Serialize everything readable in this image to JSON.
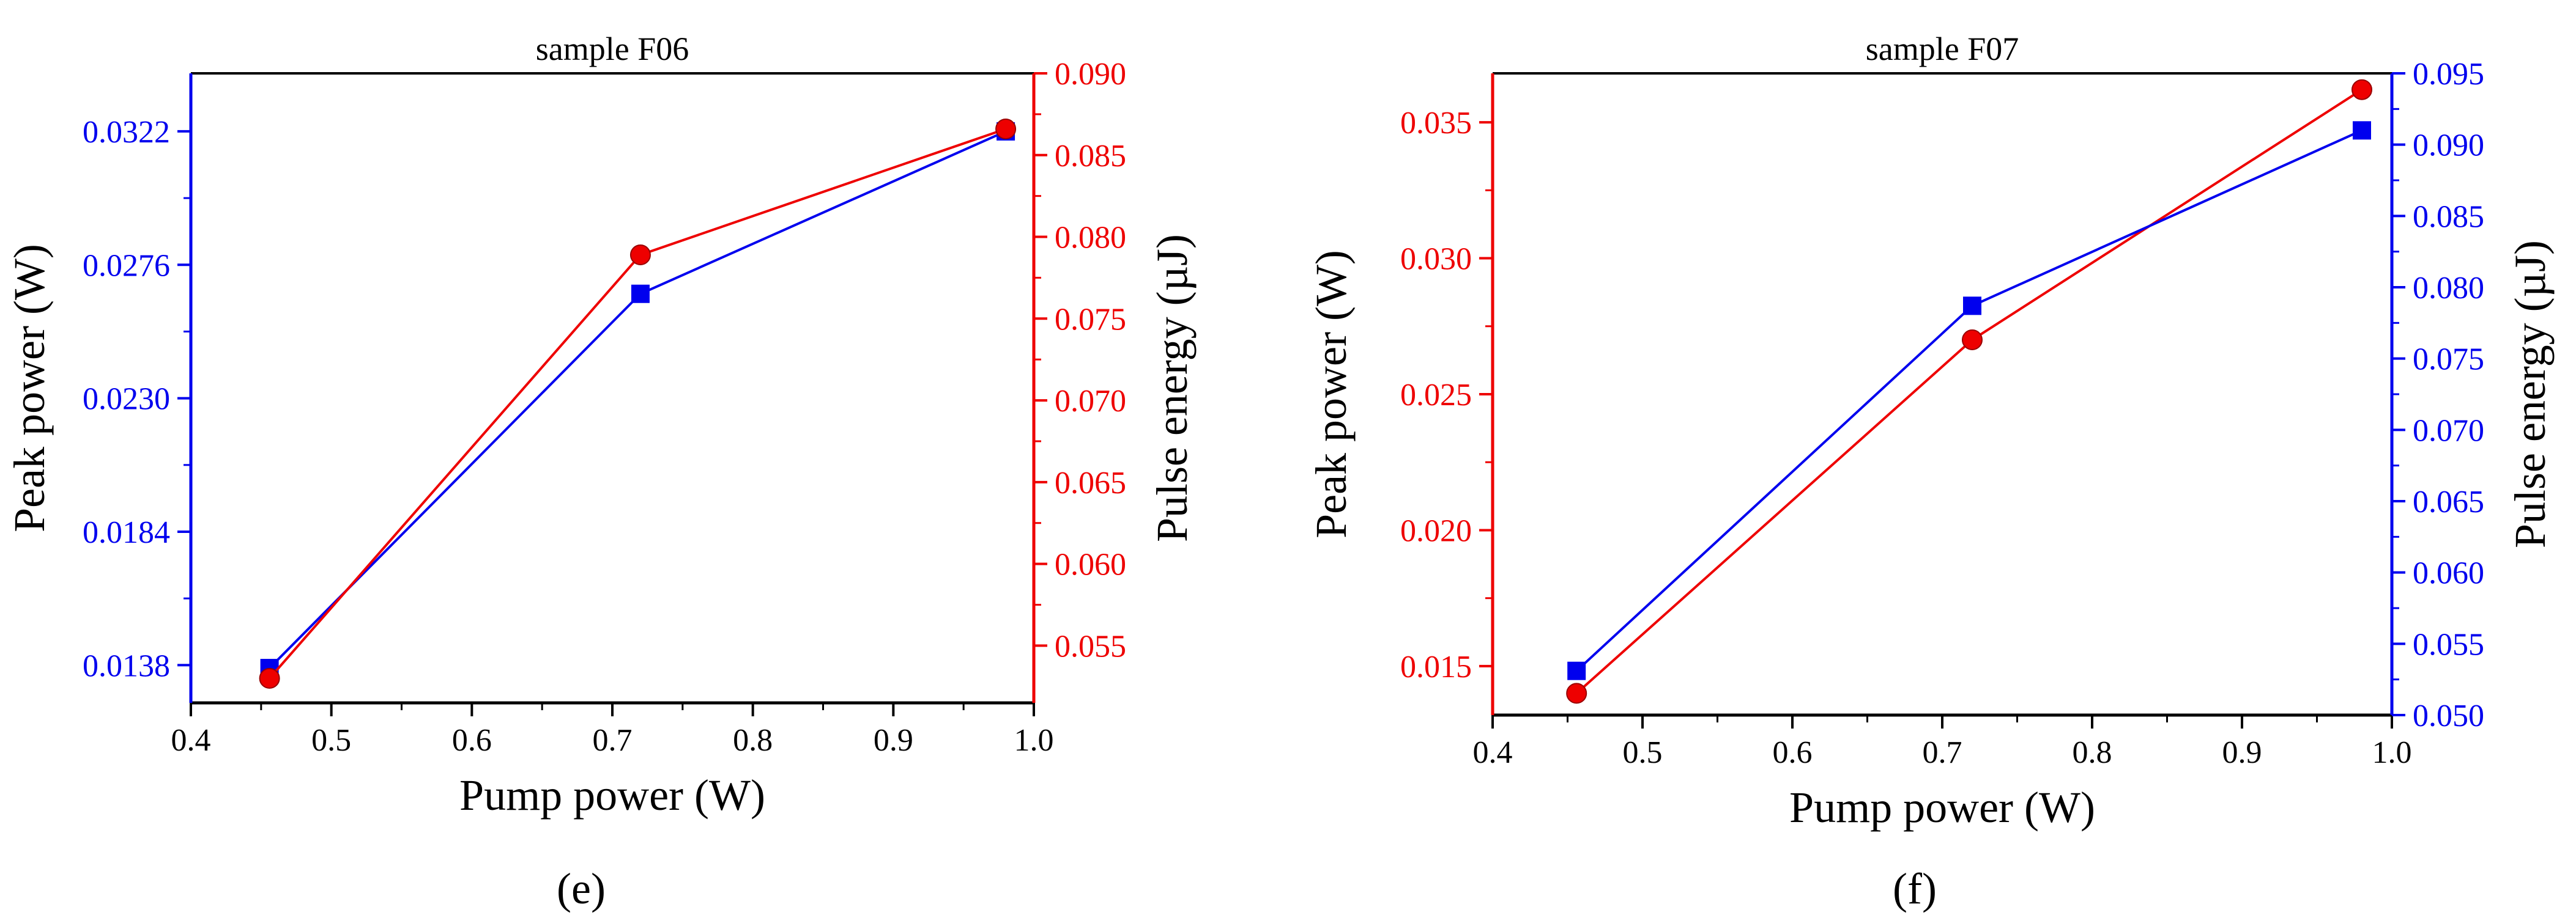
{
  "captions": {
    "panel_e": "(e)",
    "panel_f": "(f)"
  },
  "chart_data": [
    {
      "id": "panel-e",
      "type": "line",
      "title": "sample F06",
      "xlabel": "Pump power (W)",
      "ylabel_left": "Peak power (W)",
      "ylabel_right": "Pulse energy (µJ)",
      "xlim": [
        0.4,
        1.0
      ],
      "xticks": [
        0.4,
        0.5,
        0.6,
        0.7,
        0.8,
        0.9,
        1.0
      ],
      "xtick_labels": [
        "0.4",
        "0.5",
        "0.6",
        "0.7",
        "0.8",
        "0.9",
        "1.0"
      ],
      "ylim_left": [
        0.0125,
        0.0342
      ],
      "yticks_left": [
        0.0138,
        0.0184,
        0.023,
        0.0276,
        0.0322
      ],
      "ytick_labels_left": [
        "0.0138",
        "0.0184",
        "0.0230",
        "0.0276",
        "0.0322"
      ],
      "ylim_right": [
        0.0515,
        0.09
      ],
      "yticks_right": [
        0.055,
        0.06,
        0.065,
        0.07,
        0.075,
        0.08,
        0.085,
        0.09
      ],
      "ytick_labels_right": [
        "0.055",
        "0.060",
        "0.065",
        "0.070",
        "0.075",
        "0.080",
        "0.085",
        "0.090"
      ],
      "colors": {
        "left_axis": "#0000ee",
        "right_axis": "#ee0000",
        "frame": "#000000"
      },
      "series": [
        {
          "name": "Peak power",
          "axis": "left",
          "marker": "square",
          "color": "#0000ee",
          "x": [
            0.456,
            0.72,
            0.98
          ],
          "values": [
            0.0137,
            0.0266,
            0.0322
          ]
        },
        {
          "name": "Pulse energy",
          "axis": "right",
          "marker": "circle",
          "color": "#ee0000",
          "x": [
            0.456,
            0.72,
            0.98
          ],
          "values": [
            0.053,
            0.0789,
            0.0866
          ]
        }
      ]
    },
    {
      "id": "panel-f",
      "type": "line",
      "title": "sample F07",
      "xlabel": "Pump power (W)",
      "ylabel_left": "Peak power (W)",
      "ylabel_right": "Pulse energy (µJ)",
      "xlim": [
        0.4,
        1.0
      ],
      "xticks": [
        0.4,
        0.5,
        0.6,
        0.7,
        0.8,
        0.9,
        1.0
      ],
      "xtick_labels": [
        "0.4",
        "0.5",
        "0.6",
        "0.7",
        "0.8",
        "0.9",
        "1.0"
      ],
      "ylim_left": [
        0.0132,
        0.0368
      ],
      "yticks_left": [
        0.015,
        0.02,
        0.025,
        0.03,
        0.035
      ],
      "ytick_labels_left": [
        "0.015",
        "0.020",
        "0.025",
        "0.030",
        "0.035"
      ],
      "ylim_right": [
        0.05,
        0.095
      ],
      "yticks_right": [
        0.05,
        0.055,
        0.06,
        0.065,
        0.07,
        0.075,
        0.08,
        0.085,
        0.09,
        0.095
      ],
      "ytick_labels_right": [
        "0.050",
        "0.055",
        "0.060",
        "0.065",
        "0.070",
        "0.075",
        "0.080",
        "0.085",
        "0.090",
        "0.095"
      ],
      "colors": {
        "left_axis": "#ee0000",
        "right_axis": "#0000ee",
        "frame": "#000000"
      },
      "series": [
        {
          "name": "Peak power",
          "axis": "left",
          "marker": "circle",
          "color": "#ee0000",
          "x": [
            0.456,
            0.72,
            0.98
          ],
          "values": [
            0.014,
            0.027,
            0.0362
          ]
        },
        {
          "name": "Pulse energy",
          "axis": "right",
          "marker": "square",
          "color": "#0000ee",
          "x": [
            0.456,
            0.72,
            0.98
          ],
          "values": [
            0.0531,
            0.0787,
            0.091
          ]
        }
      ]
    }
  ]
}
